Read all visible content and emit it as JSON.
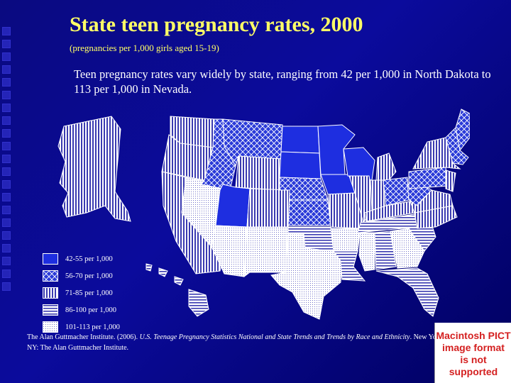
{
  "title": "State teen pregnancy rates, 2000",
  "subtitle": "(pregnancies per 1,000 girls aged 15-19)",
  "description": "Teen pregnancy rates vary widely by state, ranging from 42 per 1,000 in North Dakota to 113 per 1,000 in Nevada.",
  "legend": [
    {
      "label": "42-55 per 1,000",
      "pattern": "solid"
    },
    {
      "label": "56-70 per 1,000",
      "pattern": "crosshatch"
    },
    {
      "label": "71-85 per 1,000",
      "pattern": "vertical"
    },
    {
      "label": "86-100 per 1,000",
      "pattern": "horizontal"
    },
    {
      "label": "101-113 per 1,000",
      "pattern": "dots"
    }
  ],
  "pict_placeholder": [
    "Macintosh PICT",
    "image format",
    "is not supported"
  ],
  "citation": {
    "prefix": "The Alan Guttmacher Institute. (2006). ",
    "italic": "U.S. Teenage Pregnancy Statistics National and State Trends and Trends by Race and Ethnicity",
    "suffix": ". New York, NY: The Alan Guttmacher Institute."
  },
  "colors": {
    "title": "#ffff66",
    "background": "#0a0a80",
    "solid_fill": "#1e2ee0",
    "pict_text": "#d42020"
  }
}
